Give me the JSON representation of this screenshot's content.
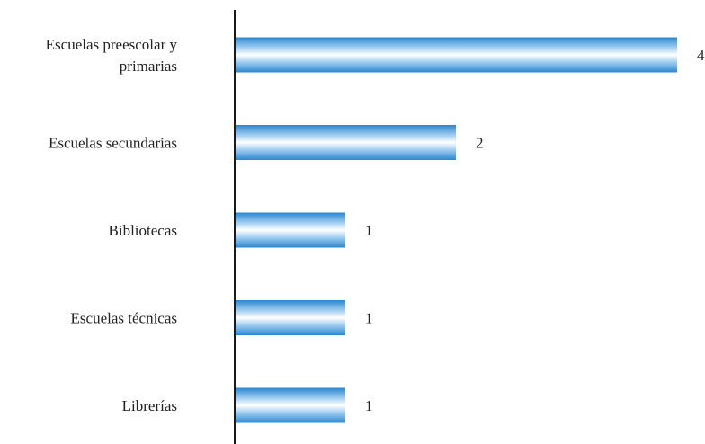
{
  "chart_data": {
    "type": "bar",
    "orientation": "horizontal",
    "categories": [
      [
        "Escuelas preescolar y",
        "primarias"
      ],
      [
        "Escuelas secundarias"
      ],
      [
        "Bibliotecas"
      ],
      [
        "Escuelas técnicas"
      ],
      [
        "Librerías"
      ]
    ],
    "values": [
      4,
      2,
      1,
      1,
      1
    ],
    "xlim": [
      0,
      4
    ],
    "grid": false,
    "legend": "none",
    "colors": {
      "bar_edge": "#2a86cf",
      "bar_mid": "#9ccbf0",
      "bar_highlight": "#ffffff",
      "axis": "#1a1a1a",
      "text": "#222222"
    }
  }
}
